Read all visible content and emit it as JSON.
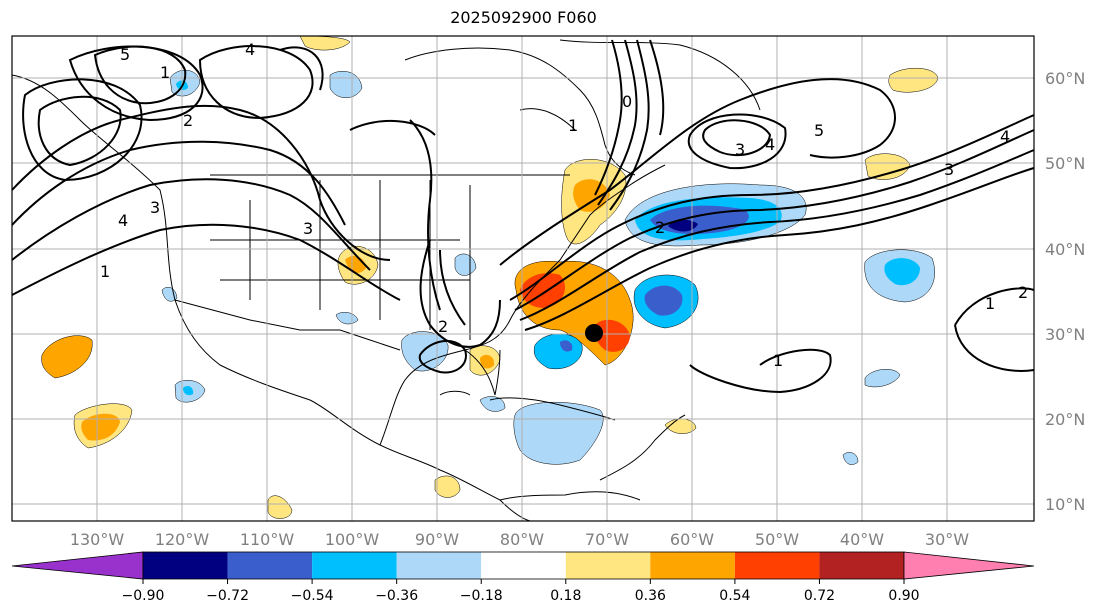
{
  "title": "2025092900 F060",
  "map": {
    "lat_labels": [
      "60°N",
      "50°N",
      "40°N",
      "30°N",
      "20°N",
      "10°N"
    ],
    "lon_labels": [
      "130°W",
      "120°W",
      "110°W",
      "100°W",
      "90°W",
      "80°W",
      "70°W",
      "60°W",
      "50°W",
      "40°W",
      "30°W"
    ],
    "contour_labels": [
      "1",
      "2",
      "3",
      "4",
      "5",
      "0"
    ],
    "storm_marker": {
      "lon": -70.9,
      "lat": 30.0
    }
  },
  "colorbar": {
    "ticks": [
      "−0.90",
      "−0.72",
      "−0.54",
      "−0.36",
      "−0.18",
      "0.18",
      "0.36",
      "0.54",
      "0.72",
      "0.90"
    ],
    "colors": {
      "under": "#9932cc",
      "bins": [
        "#000080",
        "#3a5fcd",
        "#00bfff",
        "#add8f8",
        "#ffffff",
        "#ffe680",
        "#ffa500",
        "#ff4000",
        "#b22222"
      ],
      "over": "#ff80b0"
    }
  }
}
